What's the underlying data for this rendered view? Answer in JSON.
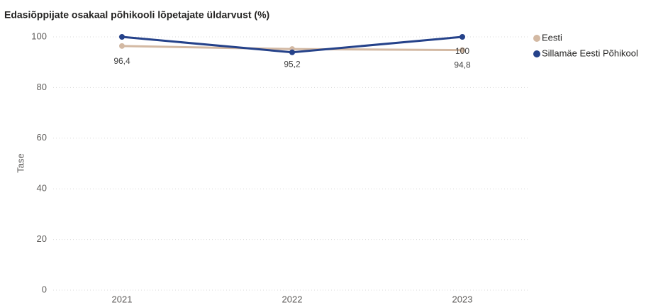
{
  "chart_data": {
    "type": "line",
    "title": "Edasiõppijate osakaal põhikooli lõpetajate üldarvust (%)",
    "y_label": "Tase",
    "categories": [
      "2021",
      "2022",
      "2023"
    ],
    "series": [
      {
        "name": "Eesti",
        "color": "#d3b9a3",
        "values": [
          96.4,
          95.2,
          94.8
        ],
        "value_labels": [
          "96,4",
          "95,2",
          "94,8"
        ]
      },
      {
        "name": "Sillamäe Eesti Põhikool",
        "color": "#25428a",
        "values": [
          100,
          93.9,
          100
        ],
        "value_labels": [
          null,
          null,
          "100"
        ]
      }
    ],
    "ylim": [
      0,
      100
    ],
    "yticks": [
      0,
      20,
      40,
      60,
      80,
      100
    ],
    "grid": true,
    "legend": "right"
  }
}
